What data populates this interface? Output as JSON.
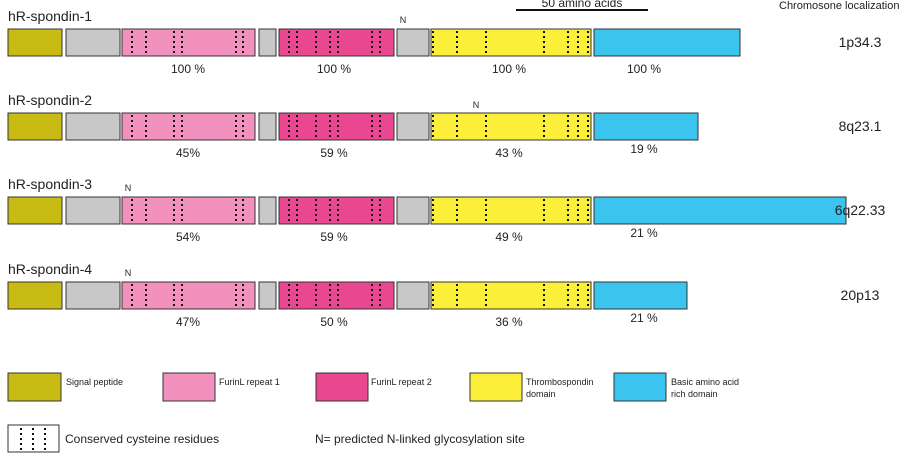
{
  "scale_bar": {
    "label": "50 amino acids"
  },
  "chromosome_header": "Chromosone localization",
  "n_marker": "N",
  "proteins": [
    {
      "name": "hR-spondin-1",
      "chromosome": "1p34.3",
      "glycosylation_site": "after-furin2",
      "identities": {
        "furin1": "100 %",
        "furin2": "100 %",
        "tsp": "100 %",
        "basic": "100 %"
      }
    },
    {
      "name": "hR-spondin-2",
      "chromosome": "8q23.1",
      "glycosylation_site": "tsp",
      "identities": {
        "furin1": "45%",
        "furin2": "59 %",
        "tsp": "43 %",
        "basic": "19 %"
      }
    },
    {
      "name": "hR-spondin-3",
      "chromosome": "6q22.33",
      "glycosylation_site": "furin1",
      "identities": {
        "furin1": "54%",
        "furin2": "59 %",
        "tsp": "49 %",
        "basic": "21 %"
      }
    },
    {
      "name": "hR-spondin-4",
      "chromosome": "20p13",
      "glycosylation_site": "furin1",
      "identities": {
        "furin1": "47%",
        "furin2": "50 %",
        "tsp": "36 %",
        "basic": "21 %"
      }
    }
  ],
  "legend": {
    "signal": "Signal peptide",
    "furin1": "FurinL repeat 1",
    "furin2": "FurinL repeat 2",
    "tsp_line1": "Thrombospondin",
    "tsp_line2": "domain",
    "basic_line1": "Basic amino acid",
    "basic_line2": "rich domain",
    "cysteine": "Conserved cysteine residues",
    "nglyc": "N= predicted N-linked glycosylation site"
  },
  "colors": {
    "signal": "#c8bc14",
    "spacer": "#c8c8c8",
    "furin1": "#f291bd",
    "furin2": "#e9478f",
    "tsp": "#fcef3a",
    "basic": "#3ac4ee",
    "outline": "#333333"
  }
}
